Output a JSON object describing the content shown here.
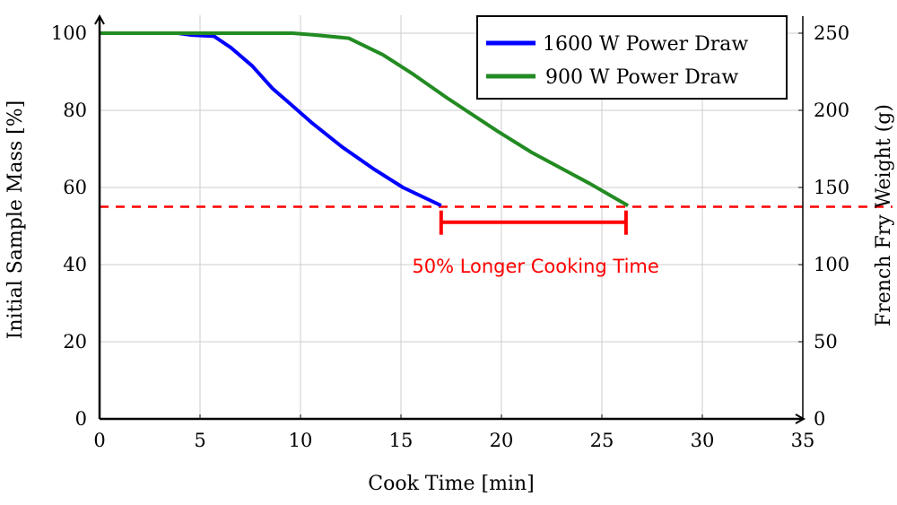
{
  "chart_data": {
    "type": "line",
    "xlabel": "Cook Time [min]",
    "ylabel": "Initial Sample Mass [%]",
    "y2label": "French Fry Weight (g)",
    "xlim": [
      0,
      35
    ],
    "ylim": [
      0,
      100
    ],
    "y2lim": [
      0,
      250
    ],
    "xticks": [
      "0",
      "5",
      "10",
      "15",
      "20",
      "25",
      "30",
      "35"
    ],
    "yticks": [
      "0",
      "20",
      "40",
      "60",
      "80",
      "100"
    ],
    "y2ticks": [
      "0",
      "50",
      "100",
      "150",
      "200",
      "250"
    ],
    "grid": true,
    "legend_position": "top-right",
    "series": [
      {
        "name": "1600 W Power Draw",
        "color": "#0000ff",
        "x": [
          0,
          3.9,
          4.6,
          5.7,
          6.55,
          7.6,
          8.6,
          9.4,
          10.6,
          12.1,
          13.7,
          15.1,
          17.0
        ],
        "y": [
          100,
          100,
          99.5,
          99.2,
          96.2,
          91.5,
          85.7,
          82.1,
          76.6,
          70.4,
          64.6,
          60,
          55.3
        ]
      },
      {
        "name": "900 W Power Draw",
        "color": "#228b22",
        "x": [
          0,
          9.6,
          10.6,
          12.4,
          14.1,
          15.6,
          17.3,
          19.8,
          21.5,
          24.4,
          26.3
        ],
        "y": [
          100,
          100,
          99.6,
          98.7,
          94.4,
          89.4,
          83.2,
          74.6,
          69.1,
          61,
          55.3
        ]
      }
    ],
    "threshold": {
      "y": 55,
      "color": "#ff0000",
      "style": "dashed"
    },
    "bracket": {
      "x": [
        17.0,
        26.2
      ],
      "y": 51
    },
    "annotation": {
      "text": "50% Longer Cooking Time",
      "x": 21.7,
      "y": 39.5,
      "color": "#ff0000"
    }
  }
}
